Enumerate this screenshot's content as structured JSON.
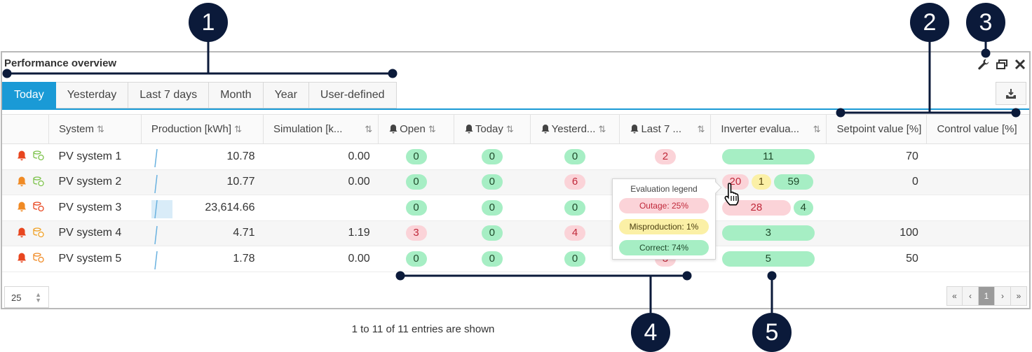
{
  "widget": {
    "title": "Performance overview"
  },
  "tabs": [
    "Today",
    "Yesterday",
    "Last 7 days",
    "Month",
    "Year",
    "User-defined"
  ],
  "active_tab": "Today",
  "columns": [
    "System",
    "Production [kWh]",
    "Simulation [k...",
    "Open",
    "Today",
    "Yesterd...",
    "Last 7 ...",
    "Inverter evalua...",
    "Setpoint value [%]",
    "Control value [%]"
  ],
  "rows": [
    {
      "system": "PV system 1",
      "production": "10.78",
      "simulation": "0.00",
      "open": "0",
      "today": "0",
      "yesterday": "0",
      "last7": "2",
      "inverter": [
        "11"
      ],
      "setpoint": "70",
      "control": ""
    },
    {
      "system": "PV system 2",
      "production": "10.77",
      "simulation": "0.00",
      "open": "0",
      "today": "0",
      "yesterday": "6",
      "last7": "",
      "inverter": [
        "20",
        "1",
        "59"
      ],
      "setpoint": "0",
      "control": ""
    },
    {
      "system": "PV system 3",
      "production": "23,614.66",
      "simulation": "",
      "open": "0",
      "today": "0",
      "yesterday": "0",
      "last7": "",
      "inverter": [
        "28",
        "4"
      ],
      "setpoint": "",
      "control": ""
    },
    {
      "system": "PV system 4",
      "production": "4.71",
      "simulation": "1.19",
      "open": "3",
      "today": "0",
      "yesterday": "4",
      "last7": "",
      "inverter": [
        "3"
      ],
      "setpoint": "100",
      "control": ""
    },
    {
      "system": "PV system 5",
      "production": "1.78",
      "simulation": "0.00",
      "open": "0",
      "today": "0",
      "yesterday": "0",
      "last7": "3",
      "inverter": [
        "5"
      ],
      "setpoint": "50",
      "control": ""
    }
  ],
  "tooltip": {
    "title": "Evaluation legend",
    "outage": "Outage: 25%",
    "misproduction": "Misproduction: 1%",
    "correct": "Correct: 74%"
  },
  "footer": {
    "page_size": "25",
    "entries_text": "1 to 11 of 11 entries are shown",
    "pager": [
      "«",
      "‹",
      "1",
      "›",
      "»"
    ]
  },
  "callouts": [
    "1",
    "2",
    "3",
    "4",
    "5"
  ],
  "colors": {
    "accent": "#1a9ad6",
    "callout": "#0b1a3a",
    "pill_green": "#a6eec4",
    "pill_red": "#fbd3d8",
    "pill_yellow": "#fbf0a6",
    "bell_red": "#e8461f",
    "bell_orange": "#f08a24"
  },
  "icons": [
    "wrench-icon",
    "restore-window-icon",
    "close-icon",
    "export-icon",
    "bell-icon",
    "status-icon",
    "sort-icon",
    "hand-cursor-icon"
  ]
}
